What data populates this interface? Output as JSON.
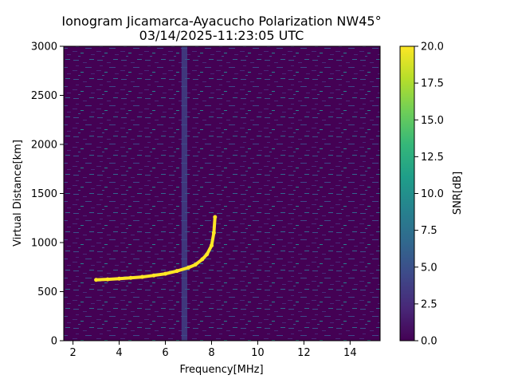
{
  "chart_data": {
    "type": "heatmap",
    "title": "Ionogram Jicamarca-Ayacucho Polarization NW45°",
    "subtitle": "03/14/2025-11:23:05 UTC",
    "xlabel": "Frequency[MHz]",
    "ylabel": "Virtual Distance[km]",
    "xlim": [
      1.6,
      15.3
    ],
    "ylim": [
      0,
      3000
    ],
    "xticks": [
      2,
      4,
      6,
      8,
      10,
      12,
      14
    ],
    "yticks": [
      0,
      500,
      1000,
      1500,
      2000,
      2500,
      3000
    ],
    "colorbar": {
      "label": "SNR[dB]",
      "lim": [
        0,
        20
      ],
      "ticks": [
        "0.0",
        "2.5",
        "5.0",
        "7.5",
        "10.0",
        "12.5",
        "15.0",
        "17.5",
        "20.0"
      ],
      "colormap": "viridis",
      "colors": [
        "#440154",
        "#482878",
        "#3e4989",
        "#31688e",
        "#26828e",
        "#1f9e89",
        "#35b779",
        "#6ece58",
        "#b5de2b",
        "#fde725"
      ]
    },
    "background_snr_db": 0,
    "noise_band_mhz": [
      6.7,
      6.95
    ],
    "trace": {
      "name": "",
      "snr_db": 20,
      "points": [
        {
          "x": 3.0,
          "y": 620
        },
        {
          "x": 3.5,
          "y": 625
        },
        {
          "x": 4.0,
          "y": 632
        },
        {
          "x": 4.5,
          "y": 640
        },
        {
          "x": 5.0,
          "y": 650
        },
        {
          "x": 5.5,
          "y": 665
        },
        {
          "x": 6.0,
          "y": 682
        },
        {
          "x": 6.5,
          "y": 710
        },
        {
          "x": 7.0,
          "y": 745
        },
        {
          "x": 7.3,
          "y": 775
        },
        {
          "x": 7.6,
          "y": 830
        },
        {
          "x": 7.8,
          "y": 880
        },
        {
          "x": 8.0,
          "y": 970
        },
        {
          "x": 8.1,
          "y": 1100
        },
        {
          "x": 8.15,
          "y": 1260
        }
      ]
    }
  }
}
